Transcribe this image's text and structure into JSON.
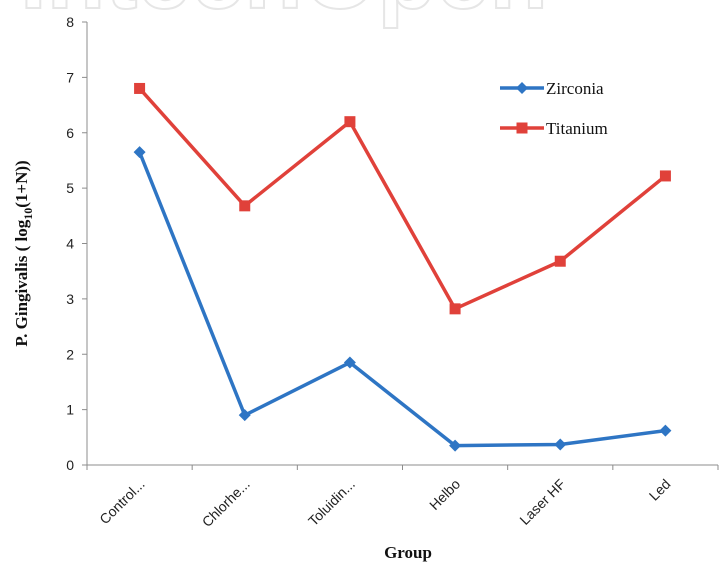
{
  "watermark": {
    "text": "IntechOpen"
  },
  "chart_data": {
    "type": "line",
    "categories": [
      "Control...",
      "Chlorhe...",
      "Toluidin...",
      "Helbo",
      "Laser HF",
      "Led"
    ],
    "series": [
      {
        "name": "Zirconia",
        "color": "#2e75c4",
        "marker": "diamond",
        "values": [
          5.65,
          0.9,
          1.85,
          0.35,
          0.37,
          0.62
        ]
      },
      {
        "name": "Titanium",
        "color": "#e0413a",
        "marker": "square",
        "values": [
          6.8,
          4.68,
          6.2,
          2.82,
          3.68,
          5.22
        ]
      }
    ],
    "xlabel": "Group",
    "ylabel_main": "P. Gingivalis ( log",
    "ylabel_sub": "10",
    "ylabel_end": "(1+N))",
    "ylim": [
      0,
      8
    ],
    "yticks": [
      0,
      1,
      2,
      3,
      4,
      5,
      6,
      7,
      8
    ],
    "grid": false,
    "legend": "top-right"
  }
}
